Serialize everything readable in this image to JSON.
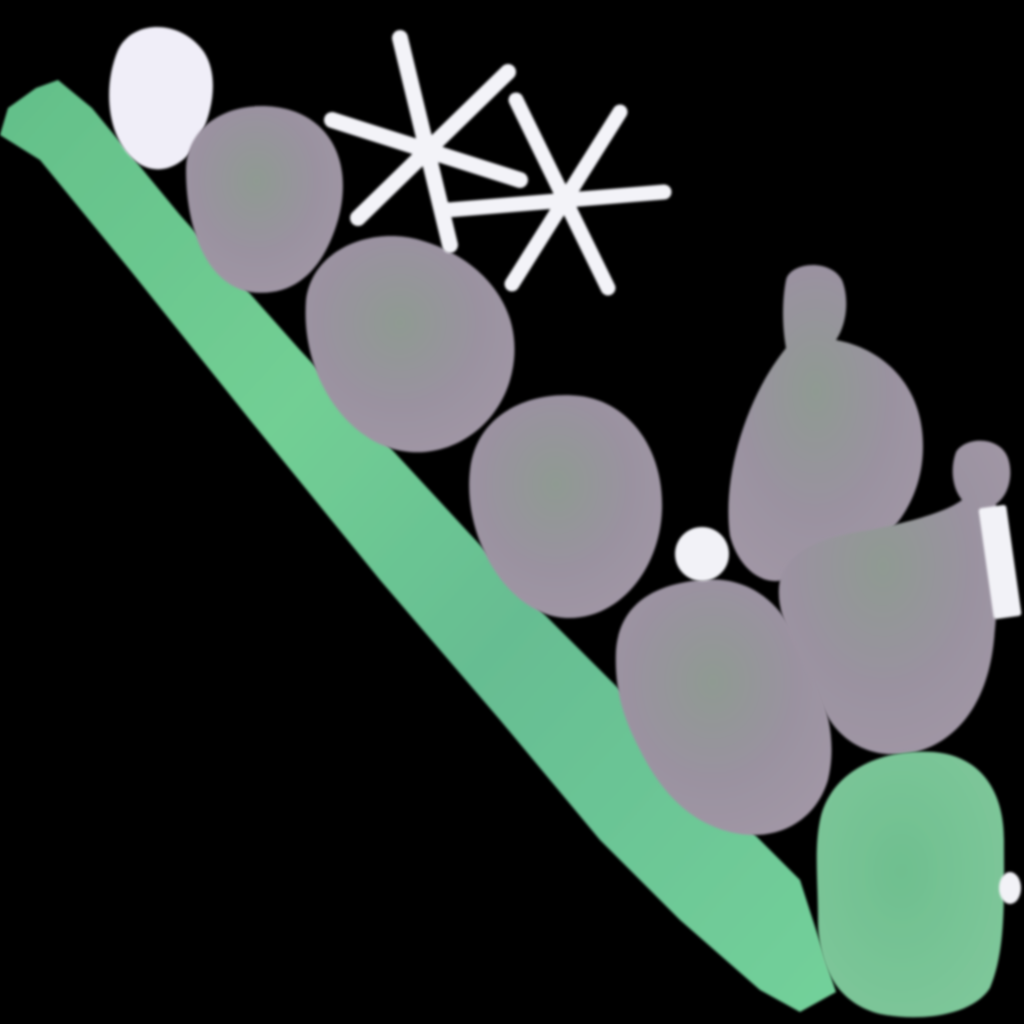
{
  "scene": {
    "subject": "painted-illustration",
    "colors": {
      "background": "#000000",
      "stem": "#6ccf8f",
      "stem_dark": "#5fb88c",
      "blob": "#9c93a0",
      "blob_light": "#a79aa8",
      "blob_green": "#74c090",
      "white": "#f2f2f7"
    },
    "elements": [
      "diagonal-green-stem",
      "gray-blob-cluster",
      "green-blob",
      "white-asterisk-sparkles",
      "white-dots",
      "white-bar"
    ]
  }
}
